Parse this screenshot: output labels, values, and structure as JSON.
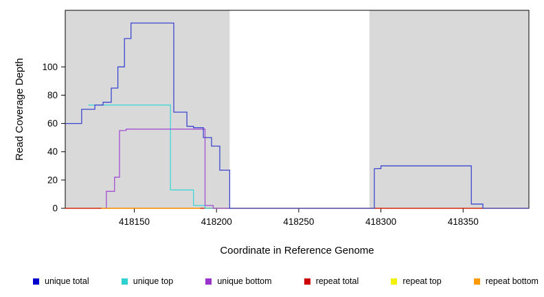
{
  "chart_data": {
    "type": "line",
    "subtype": "step-coverage",
    "title": "",
    "xlabel": "Coordinate in Reference Genome",
    "ylabel": "Read Coverage Depth",
    "xlim": [
      418108,
      418390
    ],
    "ylim": [
      0,
      140
    ],
    "x_ticks": [
      418150,
      418200,
      418250,
      418300,
      418350
    ],
    "y_ticks": [
      0,
      20,
      40,
      60,
      80,
      100
    ],
    "grid": false,
    "legend_position": "bottom",
    "plot_bg": "#ffffff",
    "border_color": "#000000",
    "shaded_region_color": "#d9d9d9",
    "shaded_regions": [
      [
        418108,
        418208
      ],
      [
        418293,
        418390
      ]
    ],
    "series": [
      {
        "name": "repeat top",
        "color": "#f2f200",
        "points": [
          [
            418108,
            0
          ],
          [
            418390,
            0
          ]
        ]
      },
      {
        "name": "repeat total",
        "color": "#cc0000",
        "points": [
          [
            418108,
            0
          ],
          [
            418390,
            0
          ]
        ]
      },
      {
        "name": "repeat bottom",
        "color": "#ff9900",
        "points": [
          [
            418130,
            0
          ],
          [
            418190,
            0
          ]
        ]
      },
      {
        "name": "unique top",
        "color": "#3fd6d6",
        "points": [
          [
            418122,
            73
          ],
          [
            418172,
            73
          ],
          [
            418172,
            13
          ],
          [
            418186,
            13
          ],
          [
            418186,
            2
          ],
          [
            418193,
            2
          ],
          [
            418193,
            0
          ],
          [
            418210,
            0
          ]
        ]
      },
      {
        "name": "unique bottom",
        "color": "#a24fd3",
        "points": [
          [
            418133,
            0
          ],
          [
            418133,
            12
          ],
          [
            418138,
            12
          ],
          [
            418138,
            22
          ],
          [
            418141,
            22
          ],
          [
            418141,
            55
          ],
          [
            418145,
            55
          ],
          [
            418145,
            56
          ],
          [
            418193,
            56
          ],
          [
            418193,
            2
          ],
          [
            418198,
            2
          ],
          [
            418198,
            0
          ],
          [
            418208,
            0
          ]
        ]
      },
      {
        "name": "unique total",
        "color": "#3a46cf",
        "points": [
          [
            418108,
            60
          ],
          [
            418118,
            60
          ],
          [
            418118,
            70
          ],
          [
            418126,
            70
          ],
          [
            418126,
            73
          ],
          [
            418131,
            73
          ],
          [
            418131,
            75
          ],
          [
            418136,
            75
          ],
          [
            418136,
            85
          ],
          [
            418140,
            85
          ],
          [
            418140,
            100
          ],
          [
            418144,
            100
          ],
          [
            418144,
            120
          ],
          [
            418148,
            120
          ],
          [
            418148,
            131
          ],
          [
            418174,
            131
          ],
          [
            418174,
            68
          ],
          [
            418182,
            68
          ],
          [
            418182,
            58
          ],
          [
            418186,
            58
          ],
          [
            418186,
            57
          ],
          [
            418192,
            57
          ],
          [
            418192,
            50
          ],
          [
            418197,
            50
          ],
          [
            418197,
            44
          ],
          [
            418202,
            44
          ],
          [
            418202,
            27
          ],
          [
            418208,
            27
          ],
          [
            418208,
            0
          ],
          [
            418296,
            0
          ],
          [
            418296,
            28
          ],
          [
            418300,
            28
          ],
          [
            418300,
            30
          ],
          [
            418355,
            30
          ],
          [
            418355,
            3
          ],
          [
            418362,
            3
          ],
          [
            418362,
            0
          ],
          [
            418390,
            0
          ]
        ]
      }
    ]
  },
  "legend": {
    "items": [
      {
        "label": "unique total",
        "color": "#0000cc"
      },
      {
        "label": "unique top",
        "color": "#2fd0d0"
      },
      {
        "label": "unique bottom",
        "color": "#9933cc"
      },
      {
        "label": "repeat total",
        "color": "#cc0000"
      },
      {
        "label": "repeat top",
        "color": "#f2f200"
      },
      {
        "label": "repeat bottom",
        "color": "#ff9900"
      }
    ]
  }
}
